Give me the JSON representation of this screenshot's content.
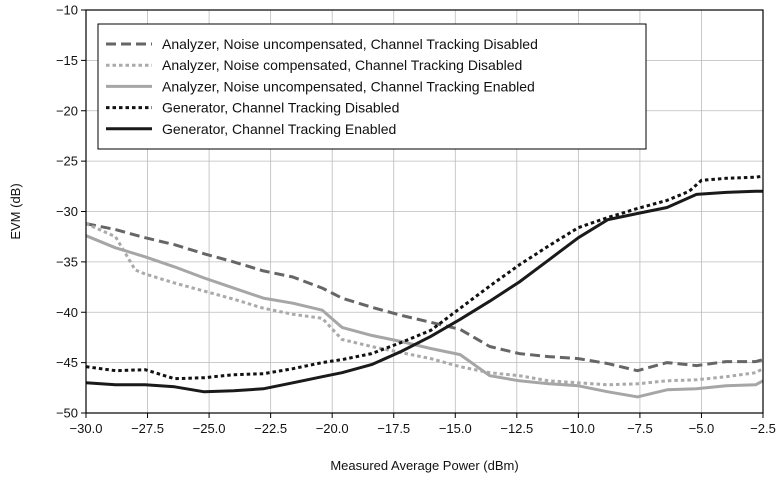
{
  "chart_data": {
    "type": "line",
    "title": "",
    "xlabel": "Measured Average Power (dBm)",
    "ylabel": "EVM (dB)",
    "xlim": [
      -30.0,
      -2.5
    ],
    "ylim": [
      -50,
      -10
    ],
    "x_ticks": [
      -30.0,
      -27.5,
      -25.0,
      -22.5,
      -20.0,
      -17.5,
      -15.0,
      -12.5,
      -10.0,
      -7.5,
      -5.0,
      -2.5
    ],
    "x_tick_labels": [
      "−30.0",
      "−27.5",
      "−25.0",
      "−22.5",
      "−20.0",
      "−17.5",
      "−15.0",
      "−12.5",
      "−10.0",
      "−7.5",
      "−5.0",
      "−2.5"
    ],
    "y_ticks": [
      -50,
      -45,
      -40,
      -35,
      -30,
      -25,
      -20,
      -15,
      -10
    ],
    "y_tick_labels": [
      "−50",
      "−45",
      "−40",
      "−35",
      "−30",
      "−25",
      "−20",
      "−15",
      "−10"
    ],
    "grid": true,
    "legend_position": "top-left",
    "series": [
      {
        "name": "Analyzer, Noise uncompensated, Channel Tracking Disabled",
        "color": "#666666",
        "dash": "dashed",
        "x": [
          -30.0,
          -28.8,
          -27.6,
          -26.4,
          -25.2,
          -24.0,
          -22.8,
          -21.6,
          -20.4,
          -19.6,
          -18.4,
          -17.2,
          -16.0,
          -14.8,
          -13.6,
          -12.4,
          -11.2,
          -10.0,
          -8.8,
          -7.6,
          -6.4,
          -5.2,
          -4.0,
          -2.8,
          -2.5
        ],
        "y": [
          -31.2,
          -31.8,
          -32.6,
          -33.3,
          -34.2,
          -35.0,
          -35.9,
          -36.5,
          -37.6,
          -38.6,
          -39.5,
          -40.3,
          -41.0,
          -41.7,
          -43.4,
          -44.1,
          -44.4,
          -44.6,
          -45.1,
          -45.8,
          -45.0,
          -45.3,
          -44.9,
          -44.9,
          -44.7
        ]
      },
      {
        "name": "Analyzer, Noise compensated, Channel Tracking Disabled",
        "color": "#aaaaaa",
        "dash": "dotted",
        "x": [
          -30.0,
          -28.8,
          -28.0,
          -27.6,
          -26.4,
          -25.2,
          -24.0,
          -22.8,
          -21.6,
          -20.4,
          -19.6,
          -18.4,
          -17.2,
          -16.0,
          -14.8,
          -13.6,
          -12.4,
          -11.2,
          -10.0,
          -8.8,
          -7.6,
          -6.4,
          -5.2,
          -4.0,
          -2.8,
          -2.5
        ],
        "y": [
          -31.2,
          -32.5,
          -35.8,
          -36.2,
          -37.1,
          -37.9,
          -38.7,
          -39.6,
          -40.2,
          -40.6,
          -42.7,
          -43.4,
          -44.0,
          -44.6,
          -45.4,
          -46.0,
          -46.3,
          -46.8,
          -47.0,
          -47.2,
          -47.1,
          -46.8,
          -46.7,
          -46.4,
          -46.0,
          -45.6
        ]
      },
      {
        "name": "Analyzer, Noise uncompensated, Channel Tracking Enabled",
        "color": "#a6a6a6",
        "dash": "solid",
        "x": [
          -30.0,
          -28.8,
          -27.6,
          -26.4,
          -25.2,
          -24.0,
          -22.8,
          -21.6,
          -20.4,
          -19.6,
          -18.4,
          -17.2,
          -16.0,
          -14.8,
          -13.6,
          -12.4,
          -11.2,
          -10.0,
          -8.8,
          -7.6,
          -6.4,
          -5.2,
          -4.0,
          -2.8,
          -2.5
        ],
        "y": [
          -32.4,
          -33.6,
          -34.5,
          -35.5,
          -36.6,
          -37.6,
          -38.6,
          -39.1,
          -39.8,
          -41.5,
          -42.3,
          -42.9,
          -43.6,
          -44.2,
          -46.3,
          -46.8,
          -47.1,
          -47.3,
          -47.9,
          -48.4,
          -47.7,
          -47.6,
          -47.3,
          -47.2,
          -46.8
        ]
      },
      {
        "name": "Generator, Channel Tracking Disabled",
        "color": "#111111",
        "dash": "dotted",
        "x": [
          -30.0,
          -28.8,
          -27.6,
          -26.4,
          -25.2,
          -24.0,
          -22.8,
          -21.6,
          -20.4,
          -19.6,
          -18.4,
          -17.2,
          -16.0,
          -14.8,
          -13.6,
          -12.4,
          -11.2,
          -10.0,
          -8.8,
          -7.6,
          -6.4,
          -5.5,
          -5.0,
          -4.0,
          -2.8,
          -2.5
        ],
        "y": [
          -45.4,
          -45.8,
          -45.7,
          -46.6,
          -46.5,
          -46.2,
          -46.1,
          -45.6,
          -45.0,
          -44.7,
          -44.1,
          -43.0,
          -41.8,
          -39.6,
          -37.4,
          -35.3,
          -33.4,
          -31.6,
          -30.6,
          -29.7,
          -28.9,
          -28.0,
          -26.9,
          -26.7,
          -26.6,
          -26.5
        ]
      },
      {
        "name": "Generator, Channel Tracking Enabled",
        "color": "#1a1a1a",
        "dash": "solid",
        "x": [
          -30.0,
          -28.8,
          -27.6,
          -26.4,
          -25.2,
          -24.0,
          -22.8,
          -21.6,
          -20.4,
          -19.6,
          -18.4,
          -17.2,
          -16.0,
          -14.8,
          -13.6,
          -12.4,
          -11.2,
          -10.0,
          -8.8,
          -7.6,
          -6.4,
          -5.2,
          -4.0,
          -2.8,
          -2.5
        ],
        "y": [
          -47.0,
          -47.2,
          -47.2,
          -47.4,
          -47.9,
          -47.8,
          -47.6,
          -47.0,
          -46.4,
          -46.0,
          -45.2,
          -43.9,
          -42.4,
          -40.7,
          -38.9,
          -37.0,
          -34.8,
          -32.6,
          -30.8,
          -30.2,
          -29.6,
          -28.3,
          -28.1,
          -28.0,
          -28.0
        ]
      }
    ]
  }
}
